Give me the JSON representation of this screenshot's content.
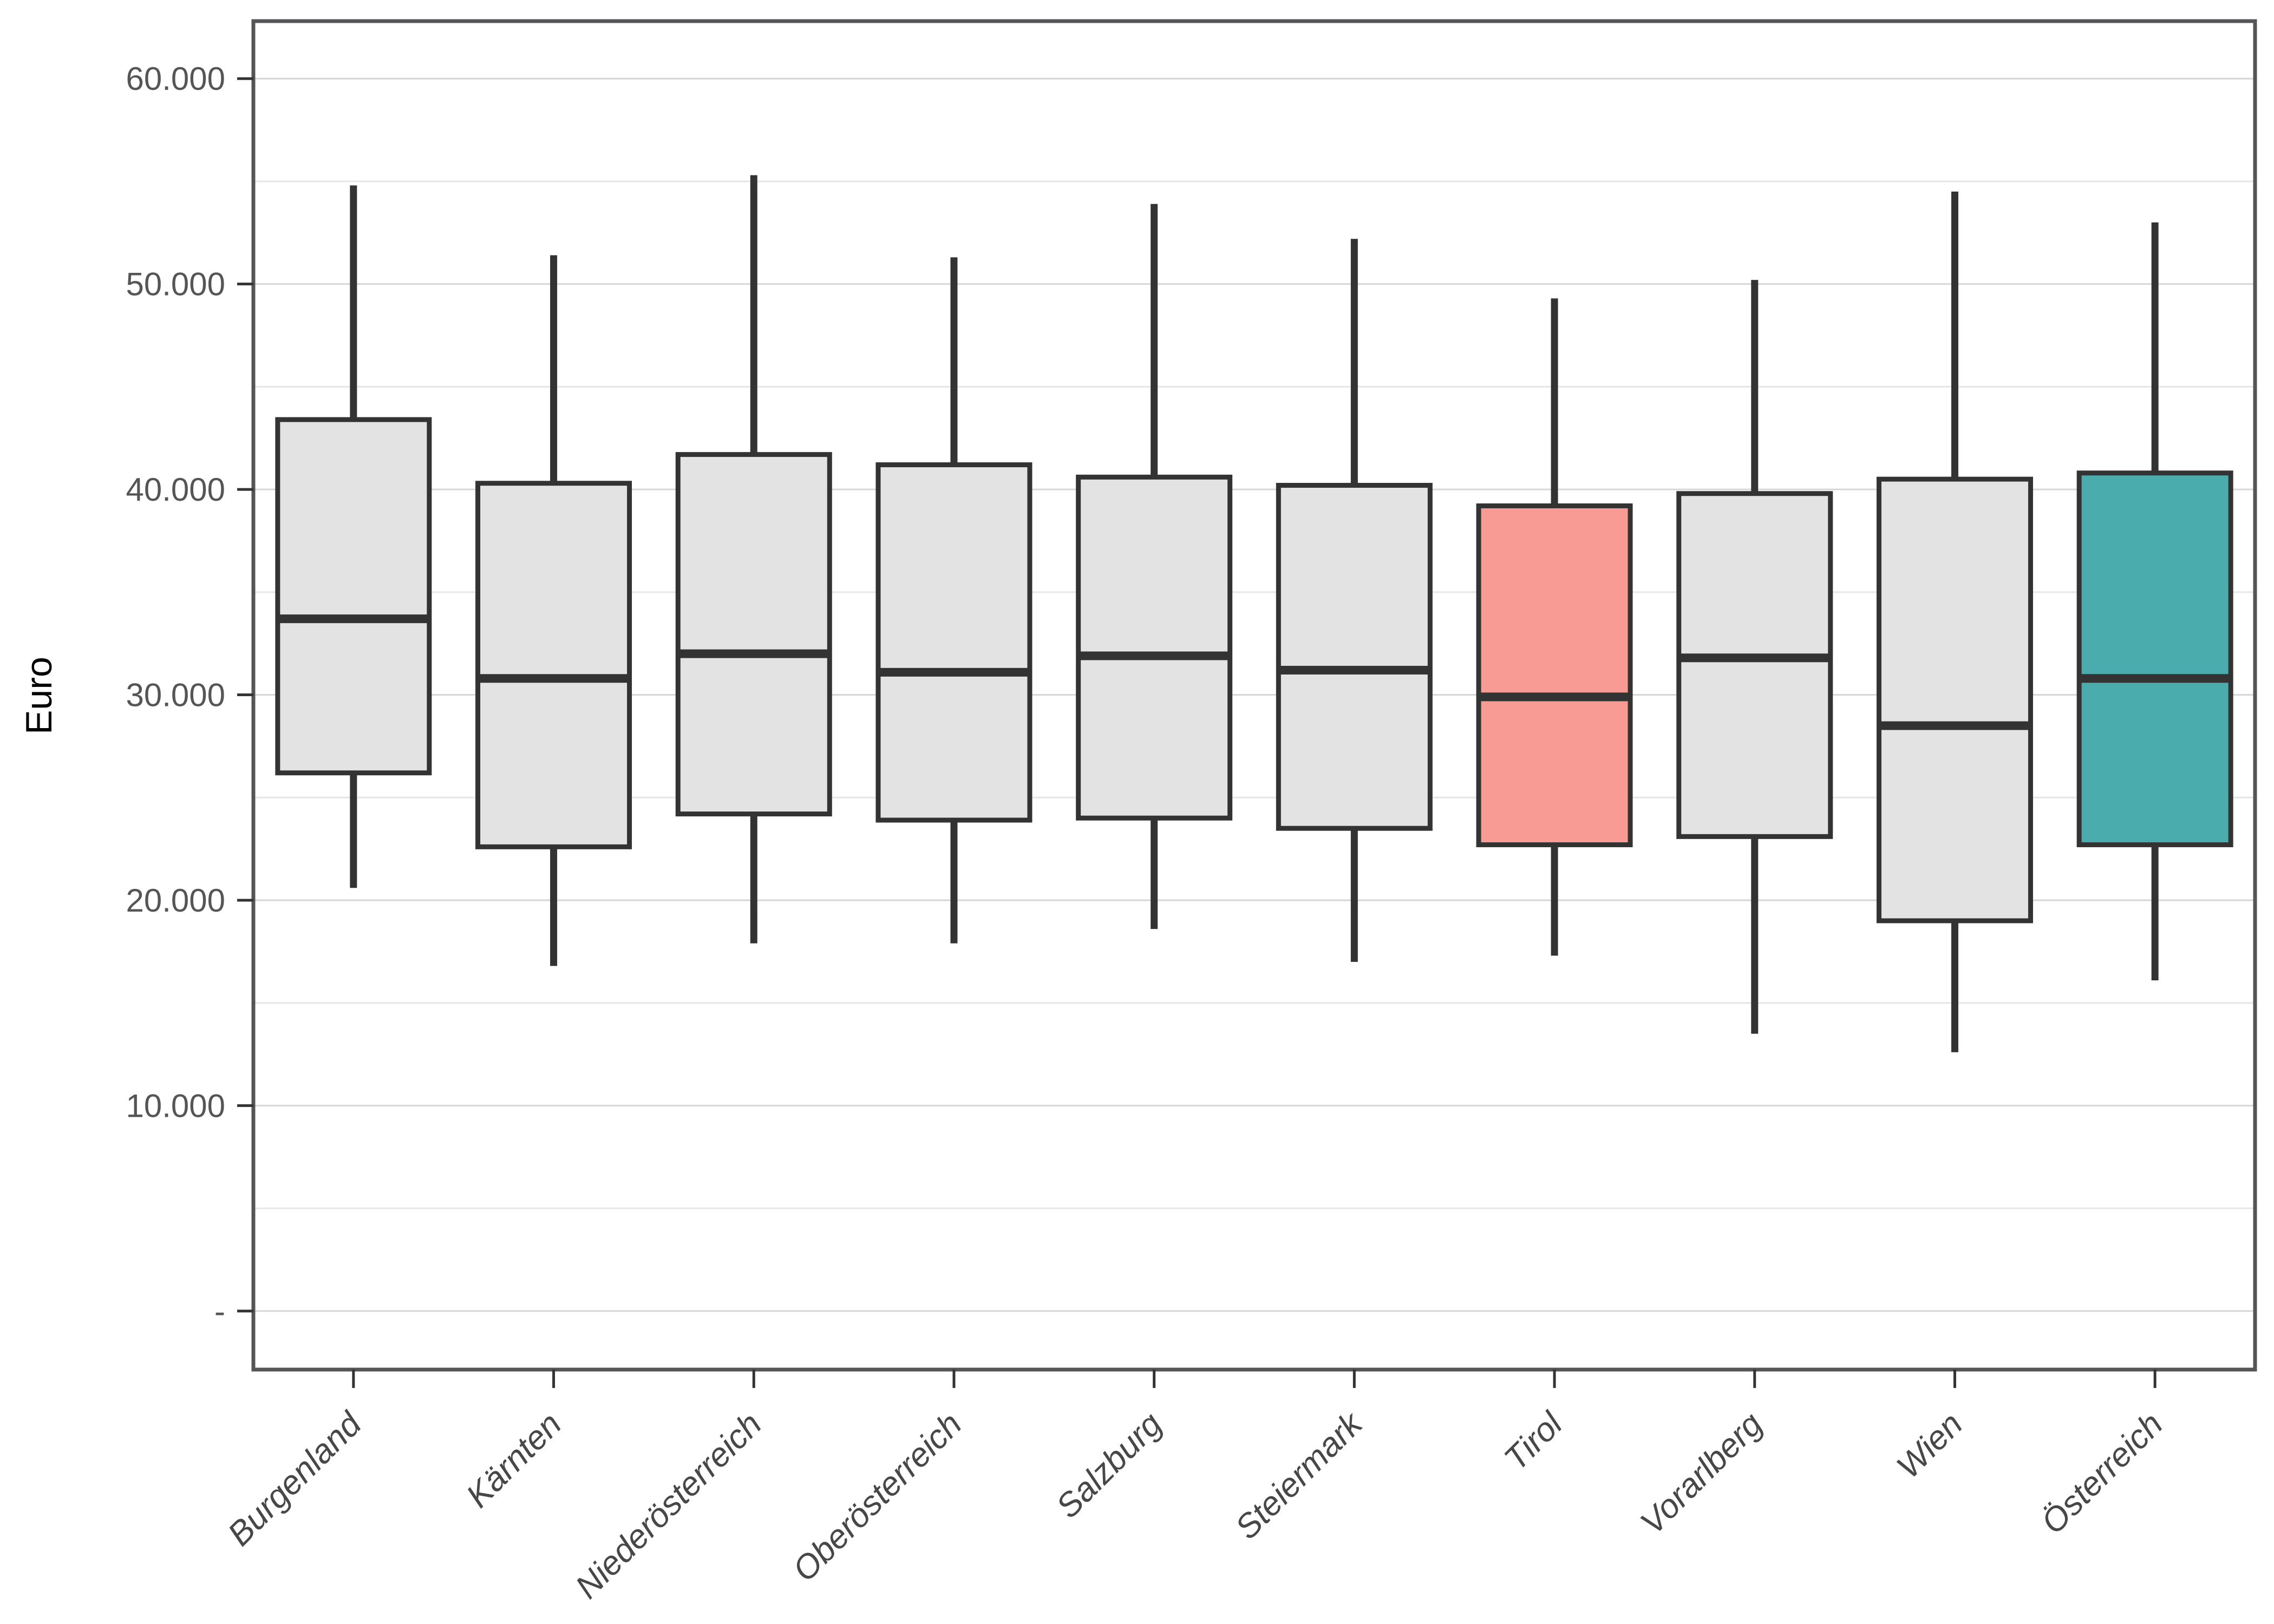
{
  "chart_data": {
    "type": "boxplot",
    "title": "",
    "xlabel": "",
    "ylabel": "Euro",
    "ylim": [
      -2850,
      62800
    ],
    "grid": "horizontal",
    "legend": "none",
    "yticks": [
      {
        "value": 0,
        "label": "-"
      },
      {
        "value": 10000,
        "label": "10.000"
      },
      {
        "value": 20000,
        "label": "20.000"
      },
      {
        "value": 30000,
        "label": "30.000"
      },
      {
        "value": 40000,
        "label": "40.000"
      },
      {
        "value": 50000,
        "label": "50.000"
      },
      {
        "value": 60000,
        "label": "60.000"
      }
    ],
    "minor_gridlines": [
      5000,
      15000,
      25000,
      35000,
      45000,
      55000
    ],
    "categories": [
      "Burgenland",
      "Kärnten",
      "Niederösterreich",
      "Oberösterreich",
      "Salzburg",
      "Steiermark",
      "Tirol",
      "Vorarlberg",
      "Wien",
      "Österreich"
    ],
    "boxes": [
      {
        "category": "Burgenland",
        "min": 20600,
        "q1": 26200,
        "median": 33700,
        "q3": 43400,
        "max": 54800,
        "color_key": "default"
      },
      {
        "category": "Kärnten",
        "min": 16800,
        "q1": 22600,
        "median": 30800,
        "q3": 40300,
        "max": 51400,
        "color_key": "default"
      },
      {
        "category": "Niederösterreich",
        "min": 17900,
        "q1": 24200,
        "median": 32000,
        "q3": 41700,
        "max": 55300,
        "color_key": "default"
      },
      {
        "category": "Oberösterreich",
        "min": 17900,
        "q1": 23900,
        "median": 31100,
        "q3": 41200,
        "max": 51300,
        "color_key": "default"
      },
      {
        "category": "Salzburg",
        "min": 18600,
        "q1": 24000,
        "median": 31900,
        "q3": 40600,
        "max": 53900,
        "color_key": "default"
      },
      {
        "category": "Steiermark",
        "min": 17000,
        "q1": 23500,
        "median": 31200,
        "q3": 40200,
        "max": 52200,
        "color_key": "default"
      },
      {
        "category": "Tirol",
        "min": 17300,
        "q1": 22700,
        "median": 29900,
        "q3": 39200,
        "max": 49300,
        "color_key": "highlight_red"
      },
      {
        "category": "Vorarlberg",
        "min": 13500,
        "q1": 23100,
        "median": 31800,
        "q3": 39800,
        "max": 50200,
        "color_key": "default"
      },
      {
        "category": "Wien",
        "min": 12600,
        "q1": 19000,
        "median": 28500,
        "q3": 40500,
        "max": 54500,
        "color_key": "default"
      },
      {
        "category": "Österreich",
        "min": 16100,
        "q1": 22700,
        "median": 30800,
        "q3": 40800,
        "max": 53000,
        "color_key": "highlight_teal"
      }
    ],
    "colors": {
      "default": "#E3E3E3",
      "highlight_red": "#F89B94",
      "highlight_teal": "#4AACAC",
      "box_border": "#333333",
      "gridline_major": "#D6D6D6",
      "gridline_minor": "#E6E6E6",
      "panel_border": "#555558",
      "tick_mark": "#333333",
      "tick_label": "#555555",
      "x_label": "#474747",
      "axis_title": "#000000",
      "background": "#FFFFFF"
    }
  }
}
